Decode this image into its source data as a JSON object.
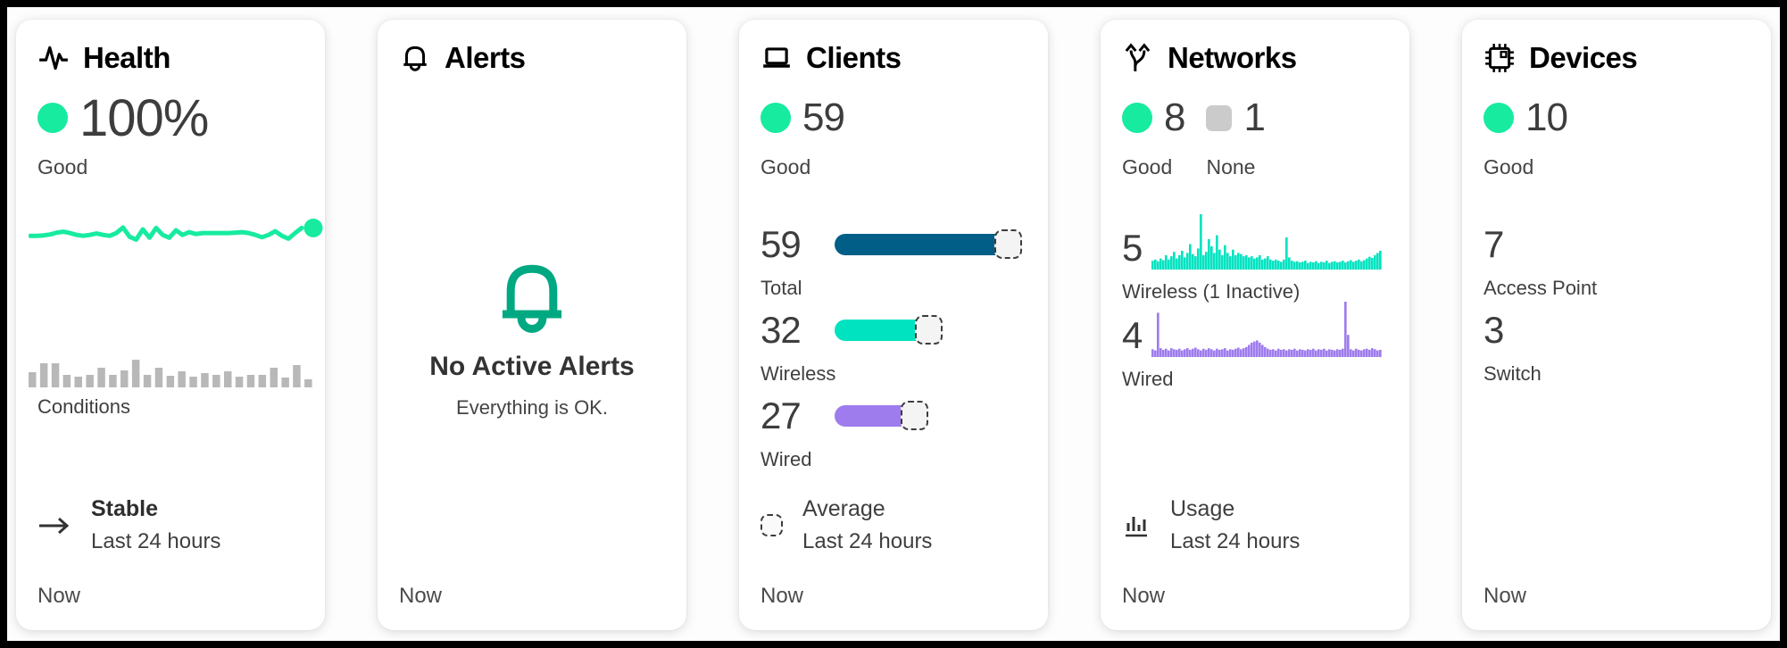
{
  "colors": {
    "good_green": "#17EBA0",
    "brand_green": "#01A982",
    "total_blue": "#015F87",
    "wireless_teal": "#00E3C1",
    "wired_purple": "#9E7CEE",
    "none_gray": "#CBCBCB",
    "conditions_gray": "#B8B8B8"
  },
  "cards": [
    {
      "title": "Health",
      "icon": "pulse-icon",
      "status": {
        "value": "100%",
        "label": "Good"
      },
      "sparkline": {
        "color": "#17EBA0",
        "values": [
          0.38,
          0.38,
          0.39,
          0.41,
          0.45,
          0.47,
          0.44,
          0.4,
          0.38,
          0.4,
          0.43,
          0.4,
          0.38,
          0.44,
          0.56,
          0.36,
          0.3,
          0.52,
          0.34,
          0.55,
          0.4,
          0.34,
          0.5,
          0.4,
          0.46,
          0.42,
          0.44,
          0.44,
          0.44,
          0.44,
          0.44,
          0.45,
          0.46,
          0.44,
          0.4,
          0.35,
          0.4,
          0.48,
          0.38,
          0.32,
          0.44,
          0.55
        ]
      },
      "conditions": {
        "label": "Conditions",
        "color": "#B8B8B8",
        "values": [
          17,
          27,
          27,
          14,
          12,
          14,
          22,
          14,
          19,
          31,
          14,
          22,
          13,
          18,
          12,
          16,
          14,
          18,
          12,
          14,
          14,
          22,
          11,
          25,
          9
        ]
      },
      "footer": {
        "icon": "arrow-right-icon",
        "title": "Stable",
        "subtitle": "Last 24 hours"
      },
      "now_label": "Now"
    },
    {
      "title": "Alerts",
      "icon": "bell-icon",
      "empty_state": {
        "title": "No Active Alerts",
        "subtitle": "Everything is OK."
      },
      "now_label": "Now"
    },
    {
      "title": "Clients",
      "icon": "laptop-icon",
      "status": {
        "value": "59",
        "label": "Good"
      },
      "stats": [
        {
          "value": "59",
          "label": "Total",
          "bar_color": "#015F87",
          "bar_len": 195
        },
        {
          "value": "32",
          "label": "Wireless",
          "bar_color": "#00E3C1",
          "bar_len": 106
        },
        {
          "value": "27",
          "label": "Wired",
          "bar_color": "#9E7CEE",
          "bar_len": 90
        }
      ],
      "footer": {
        "icon": "average-marker-icon",
        "title": "Average",
        "subtitle": "Last 24 hours"
      },
      "now_label": "Now"
    },
    {
      "title": "Networks",
      "icon": "branch-icon",
      "statuses": [
        {
          "value": "8",
          "label": "Good",
          "indicator": "good-dot"
        },
        {
          "value": "1",
          "label": "None",
          "indicator": "none-square"
        }
      ],
      "charts": [
        {
          "value": "5",
          "label": "Wireless (1 Inactive)",
          "color": "#00E3C1",
          "values": [
            16,
            18,
            15,
            20,
            17,
            26,
            18,
            24,
            32,
            20,
            26,
            34,
            22,
            30,
            46,
            28,
            24,
            38,
            100,
            26,
            32,
            55,
            42,
            30,
            62,
            36,
            26,
            44,
            30,
            24,
            36,
            26,
            30,
            28,
            24,
            26,
            22,
            24,
            20,
            22,
            26,
            18,
            20,
            24,
            18,
            16,
            18,
            16,
            14,
            18,
            58,
            22,
            16,
            14,
            15,
            13,
            14,
            16,
            12,
            14,
            13,
            15,
            12,
            14,
            13,
            16,
            12,
            14,
            15,
            13,
            14,
            16,
            13,
            15,
            17,
            14,
            16,
            18,
            15,
            17,
            20,
            23,
            21,
            26,
            30,
            34
          ]
        },
        {
          "value": "4",
          "label": "Wired",
          "color": "#9E7CEE",
          "values": [
            14,
            12,
            80,
            16,
            13,
            15,
            12,
            16,
            14,
            13,
            15,
            12,
            14,
            16,
            13,
            15,
            17,
            14,
            12,
            15,
            13,
            16,
            14,
            12,
            15,
            13,
            14,
            16,
            12,
            14,
            13,
            15,
            17,
            14,
            16,
            18,
            22,
            26,
            28,
            30,
            26,
            22,
            18,
            15,
            13,
            14,
            12,
            15,
            13,
            14,
            12,
            14,
            13,
            15,
            12,
            14,
            13,
            12,
            14,
            13,
            15,
            12,
            14,
            13,
            15,
            12,
            14,
            13,
            12,
            14,
            13,
            15,
            100,
            40,
            14,
            12,
            15,
            13,
            12,
            14,
            15,
            13,
            16,
            14,
            12,
            13
          ]
        }
      ],
      "footer": {
        "icon": "usage-chart-icon",
        "title": "Usage",
        "subtitle": "Last 24 hours"
      },
      "now_label": "Now"
    },
    {
      "title": "Devices",
      "icon": "chip-icon",
      "status": {
        "value": "10",
        "label": "Good"
      },
      "stats": [
        {
          "value": "7",
          "label": "Access Point"
        },
        {
          "value": "3",
          "label": "Switch"
        }
      ],
      "now_label": "Now"
    }
  ]
}
